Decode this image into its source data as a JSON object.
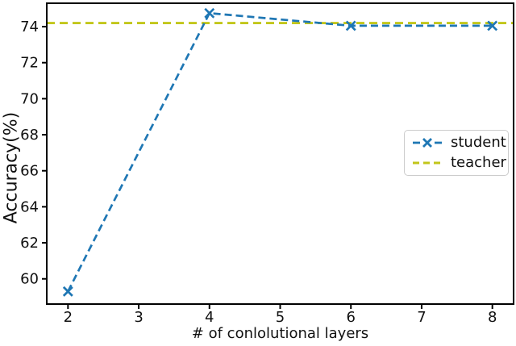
{
  "figure": {
    "background": "#ffffff",
    "text_color": "#111111",
    "spine_color": "#000000"
  },
  "chart_data": {
    "type": "line",
    "title": "",
    "xlabel": "# of conlolutional layers",
    "ylabel": "Accuracy(%)",
    "x": [
      2,
      4,
      6,
      8
    ],
    "series": [
      {
        "name": "student",
        "color": "#1f77b4",
        "linestyle": "dashed",
        "marker": "x",
        "values": [
          59.3,
          74.75,
          74.05,
          74.05
        ]
      },
      {
        "name": "teacher",
        "color": "#c2c61a",
        "linestyle": "dashed",
        "marker": "none",
        "kind": "hline",
        "value": 74.2
      }
    ],
    "xlim": [
      1.7,
      8.3
    ],
    "ylim": [
      58.6,
      75.3
    ],
    "xticks": [
      2,
      3,
      4,
      5,
      6,
      7,
      8
    ],
    "yticks": [
      60,
      62,
      64,
      66,
      68,
      70,
      72,
      74
    ],
    "grid": false,
    "legend_position": "center right"
  }
}
